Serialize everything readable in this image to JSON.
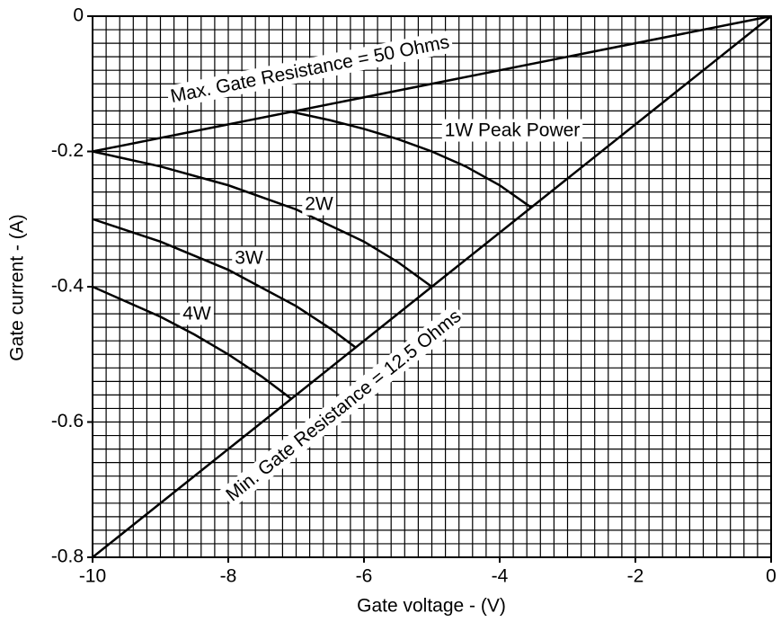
{
  "chart_data": {
    "type": "line",
    "x_label": "Gate voltage - (V)",
    "y_label": "Gate current - (A)",
    "xlim": [
      -10,
      0
    ],
    "ylim": [
      -0.8,
      0
    ],
    "xticks": [
      -10,
      -8,
      -6,
      -4,
      -2,
      0
    ],
    "yticks": [
      -0.8,
      -0.6,
      -0.4,
      -0.2,
      0
    ],
    "grid": true,
    "x_minor_step": 0.2,
    "y_minor_step": 0.02,
    "color": "#000000",
    "series": [
      {
        "name": "Max. Gate Resistance = 50 Ohms",
        "x": [
          -10,
          0
        ],
        "values": [
          -0.2,
          0
        ]
      },
      {
        "name": "Min. Gate Resistance = 12.5 Ohms",
        "x": [
          -10,
          0
        ],
        "values": [
          -0.8,
          0
        ]
      },
      {
        "name": "1W Peak Power",
        "x": [
          -7.07,
          -6.5,
          -6,
          -5.5,
          -5,
          -4.5,
          -4,
          -3.54
        ],
        "values": [
          -0.1414,
          -0.1538,
          -0.1667,
          -0.1818,
          -0.2,
          -0.2222,
          -0.25,
          -0.2825
        ]
      },
      {
        "name": "2W",
        "x": [
          -10,
          -9,
          -8,
          -7,
          -6,
          -5.5,
          -5
        ],
        "values": [
          -0.2,
          -0.2222,
          -0.25,
          -0.2857,
          -0.3333,
          -0.3636,
          -0.4
        ]
      },
      {
        "name": "3W",
        "x": [
          -10,
          -9,
          -8,
          -7,
          -6.5,
          -6.12
        ],
        "values": [
          -0.3,
          -0.3333,
          -0.375,
          -0.4286,
          -0.4615,
          -0.49
        ]
      },
      {
        "name": "4W",
        "x": [
          -10,
          -9,
          -8.5,
          -8,
          -7.5,
          -7.07
        ],
        "values": [
          -0.4,
          -0.4444,
          -0.4706,
          -0.5,
          -0.5333,
          -0.5658
        ]
      }
    ]
  }
}
